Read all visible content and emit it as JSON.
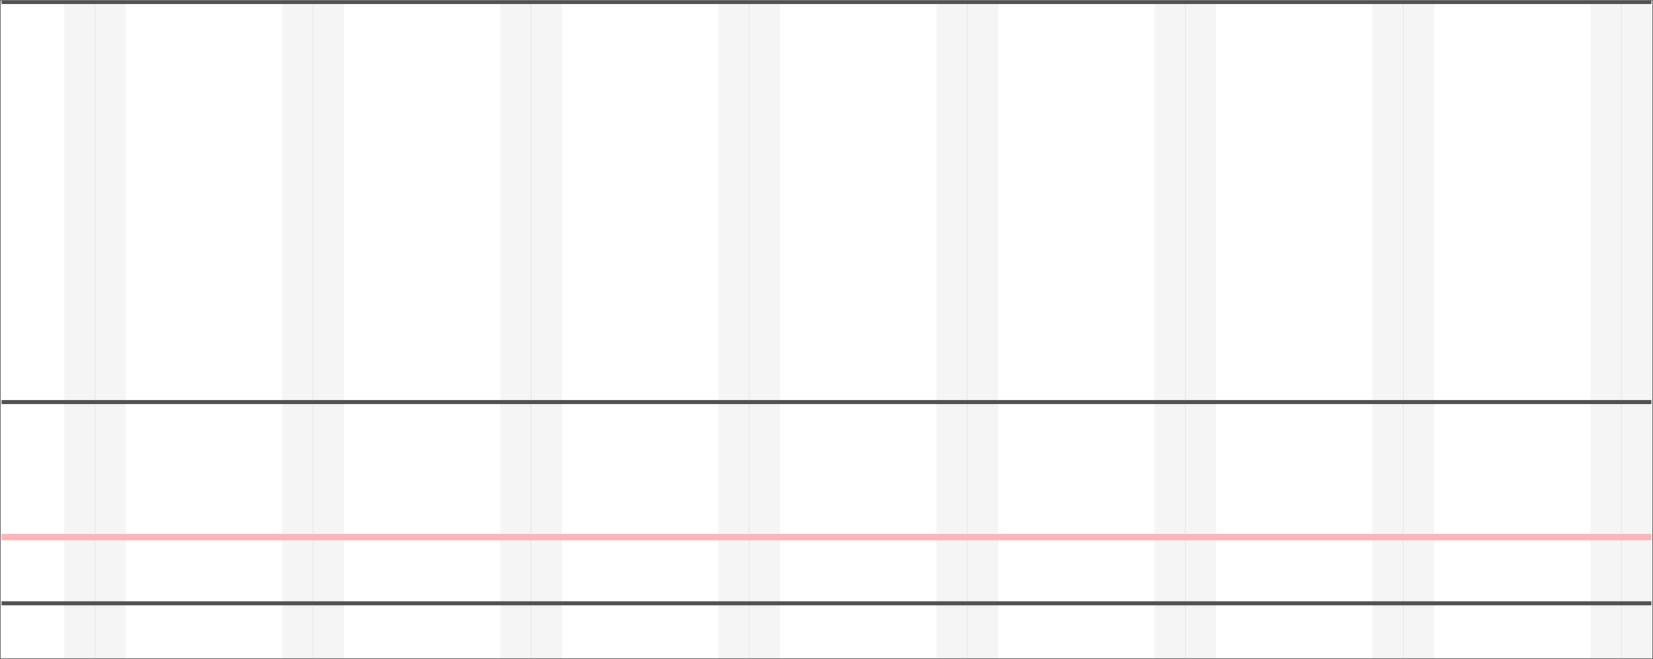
{
  "colors": {
    "background": "#ffffff",
    "column_shade": "#f5f5f5",
    "column_separator": "#e7e7e7",
    "divider": "#505050",
    "accent_line": "#ffb4b9",
    "frame": "#777777"
  },
  "grid": {
    "column_pairs": 8
  },
  "panels": {
    "count": 3
  }
}
